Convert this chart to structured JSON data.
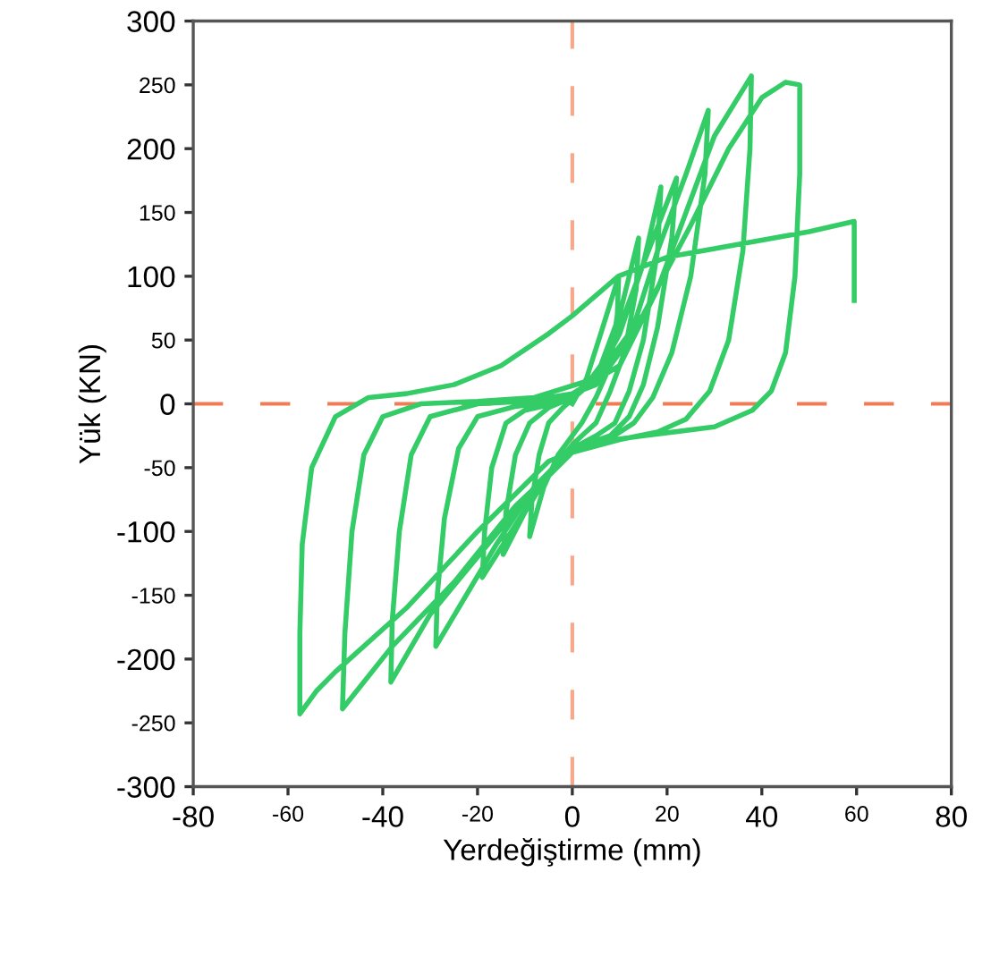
{
  "chart_data": {
    "type": "line",
    "xlabel": "Yerdeğiştirme (mm)",
    "ylabel": "Yük (KN)",
    "xlim": [
      -80,
      80
    ],
    "ylim": [
      -300,
      300
    ],
    "xticks": [
      -80,
      -60,
      -40,
      -20,
      0,
      20,
      40,
      60,
      80
    ],
    "yticks": [
      -300,
      -250,
      -200,
      -150,
      -100,
      -50,
      0,
      50,
      100,
      150,
      200,
      250,
      300
    ],
    "ref_lines": [
      {
        "axis": "x",
        "value": 0,
        "color": "#f7a88c",
        "line_style": "dashed"
      },
      {
        "axis": "y",
        "value": 0,
        "color": "#f27a54",
        "line_style": "dashed"
      }
    ],
    "series": [
      {
        "color": "#33cc66",
        "x": [
          0,
          3,
          6,
          9.8,
          9.5,
          8,
          5,
          2,
          0,
          -3,
          -6,
          -9,
          -8.5,
          -7,
          -5,
          -2,
          2,
          6,
          10,
          14,
          13.5,
          11,
          8,
          5,
          2,
          0,
          -5,
          -10,
          -14.6,
          -14,
          -12,
          -9,
          -5,
          0,
          5,
          10,
          15,
          18.7,
          18,
          15,
          12,
          9,
          5,
          0,
          -6,
          -12,
          -19,
          -18.5,
          -17,
          -14,
          -10,
          -4,
          2,
          8,
          14,
          22,
          21,
          18,
          15,
          12,
          8,
          0,
          -8,
          -16,
          -28.8,
          -28.5,
          -27,
          -24,
          -20,
          -12,
          -4,
          5,
          12,
          18,
          24,
          28.7,
          28,
          25,
          21,
          17,
          13,
          8,
          0,
          -10,
          -20,
          -30,
          -38.3,
          -38,
          -36.5,
          -34,
          -30,
          -20,
          -10,
          0,
          10,
          18,
          24,
          30,
          37.8,
          37.5,
          36,
          33,
          29,
          24,
          18,
          10,
          0,
          -12,
          -25,
          -38,
          -48.5,
          -48,
          -46.5,
          -44,
          -40,
          -32,
          -20,
          -8,
          5,
          15,
          25,
          33,
          40,
          45,
          48,
          48,
          47,
          45,
          42,
          38,
          30,
          15,
          5,
          -5,
          -20,
          -35,
          -50,
          -54,
          -57.5,
          -57.5,
          -57,
          -55,
          -50,
          -43,
          -35,
          -25,
          -15,
          -5,
          0,
          9.7,
          20,
          35,
          50,
          59.5,
          59.5
        ],
        "values": [
          0,
          20,
          55,
          100,
          70,
          30,
          5,
          -15,
          -25,
          -40,
          -65,
          -104,
          -75,
          -40,
          -15,
          -3,
          10,
          30,
          70,
          130,
          90,
          40,
          10,
          -15,
          -25,
          -32,
          -55,
          -85,
          -118,
          -85,
          -40,
          -15,
          -3,
          5,
          20,
          55,
          110,
          170,
          120,
          50,
          10,
          -15,
          -25,
          -35,
          -60,
          -95,
          -136,
          -100,
          -50,
          -15,
          -5,
          0,
          10,
          40,
          100,
          177,
          130,
          60,
          15,
          -10,
          -25,
          -35,
          -65,
          -110,
          -190,
          -150,
          -90,
          -35,
          -10,
          -2,
          2,
          15,
          50,
          120,
          180,
          230,
          180,
          100,
          40,
          5,
          -15,
          -27,
          -38,
          -75,
          -120,
          -165,
          -218,
          -170,
          -100,
          -40,
          -10,
          0,
          2,
          8,
          30,
          90,
          150,
          210,
          257,
          200,
          120,
          50,
          10,
          -12,
          -22,
          -28,
          -38,
          -80,
          -140,
          -190,
          -239,
          -180,
          -100,
          -40,
          -10,
          0,
          2,
          5,
          20,
          70,
          140,
          200,
          240,
          252,
          250,
          180,
          100,
          40,
          10,
          -5,
          -18,
          -25,
          -30,
          -45,
          -100,
          -160,
          -210,
          -225,
          -243,
          -180,
          -110,
          -50,
          -10,
          5,
          8,
          15,
          30,
          55,
          69,
          100,
          115,
          125,
          135,
          143,
          81
        ]
      }
    ]
  }
}
